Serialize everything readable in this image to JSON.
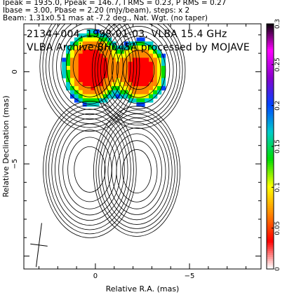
{
  "header": {
    "line1": "Ipeak = 1935.0, Ppeak = 146.7, I RMS = 0.23, P RMS = 0.27",
    "line2": "Ibase = 3.00, Pbase = 2.20 (mJy/beam), steps: x 2",
    "line3": "Beam: 1.31x0.51 mas at -7.2 deg., Nat. Wgt. (no taper)"
  },
  "annotation": {
    "line1": "2134+004, 1998-01-03, VLBA 15.4 GHz",
    "line2": "VLBA Archive BH045A processed by MOJAVE"
  },
  "chart_data": {
    "type": "heatmap",
    "title": "2134+004, 1998-01-03, VLBA 15.4 GHz",
    "xlabel": "Relative R.A. (mas)",
    "ylabel": "Relative Declination (mas)",
    "xlim": [
      3.8,
      -8.8
    ],
    "ylim": [
      -10.7,
      2.6
    ],
    "x_ticks": [
      {
        "value": 0,
        "label": "0"
      },
      {
        "value": -5,
        "label": "−5"
      }
    ],
    "y_ticks": [
      {
        "value": 0,
        "label": "0"
      },
      {
        "value": -5,
        "label": "−5"
      }
    ],
    "colorbar": {
      "min": 0,
      "max": 0.3,
      "ticks": [
        {
          "value": 0,
          "label": "0"
        },
        {
          "value": 0.05,
          "label": "0.05"
        },
        {
          "value": 0.1,
          "label": "0.1"
        },
        {
          "value": 0.15,
          "label": "0.15"
        },
        {
          "value": 0.2,
          "label": "0.2"
        },
        {
          "value": 0.25,
          "label": "0.25"
        },
        {
          "value": 0.3,
          "label": "0.3"
        }
      ],
      "colors": [
        "#ffffff",
        "#ff0000",
        "#ff8800",
        "#ffff00",
        "#00dd00",
        "#00cccc",
        "#0044ff",
        "#8800cc",
        "#ff00ff",
        "#000000"
      ]
    },
    "components": [
      {
        "name": "left-lobe",
        "x": 0.3,
        "y": 0.3,
        "sigma_x": 0.75,
        "sigma_y": 1.0,
        "peak": 1.0
      },
      {
        "name": "right-lobe",
        "x": -2.3,
        "y": 0.1,
        "sigma_x": 0.7,
        "sigma_y": 0.9,
        "peak": 0.85
      }
    ],
    "ghost_components": [
      {
        "name": "ghost-left",
        "x": 0.3,
        "y": -5.3,
        "sigma_x": 0.7,
        "sigma_y": 1.05,
        "peak": 1.0
      },
      {
        "name": "ghost-right",
        "x": -2.2,
        "y": -5.4,
        "sigma_x": 0.65,
        "sigma_y": 1.0,
        "peak": 0.9
      }
    ],
    "contour_levels": 9,
    "polarization_fraction_range": [
      0.0,
      0.3
    ],
    "beam": {
      "major_mas": 1.31,
      "minor_mas": 0.51,
      "pa_deg": -7.2,
      "x": 3.0,
      "y": -9.4
    }
  }
}
